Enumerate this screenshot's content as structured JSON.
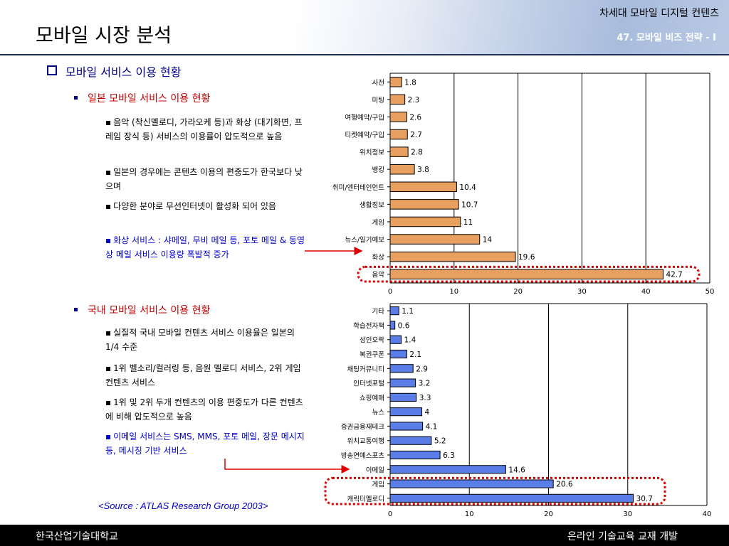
{
  "header": {
    "title": "모바일 시장 분석",
    "course": "차세대 모바일 디지털 컨텐츠",
    "chapter": "47. 모바일 비즈 전략 - I"
  },
  "section": {
    "title": "모바일 서비스 이용 현황",
    "japan": {
      "title": "일본 모바일 서비스 이용 현황",
      "points": [
        "음악 (착신멜로디, 가라오케 등)과 화상 (대기화면, 프레임 장식 등) 서비스의 이용률이 압도적으로 높음",
        "일본의 경우에는 콘텐츠 이용의 편중도가 한국보다 낮으며",
        "다양한 분야로 무선인터넷이 활성화 되어 있음",
        "화상 서비스 : 샤메일, 무비 메일 등, 포토 메일 & 동영상 메일 서비스 이용량 폭발적 증가"
      ]
    },
    "korea": {
      "title": "국내 모바일 서비스 이용 현황",
      "points": [
        "실질적 국내 모바일 컨텐츠 서비스 이용율은 일본의 1/4 수준",
        "1위 벨소리/컬러링 등, 음원 멜로디 서비스, 2위 게임 컨텐츠 서비스",
        "1위 및 2위 두개 컨텐츠의 이용 편중도가 다른 컨텐츠에 비해 압도적으로 높음",
        "이메일 서비스는 SMS, MMS, 포토 메일, 장문 메시지 등, 메시징 기반 서비스"
      ]
    },
    "source": "<Source : ATLAS Research Group 2003>"
  },
  "footer": {
    "left": "한국산업기술대학교",
    "right": "온라인 기술교육 교재 개발"
  },
  "colors": {
    "japan_bar": "#e8a060",
    "korea_bar": "#5b7de8",
    "highlight": "#dd0000",
    "accent": "#00008b"
  },
  "chart_data": [
    {
      "type": "bar",
      "orientation": "horizontal",
      "categories": [
        "사전",
        "미팅",
        "여행예약/구입",
        "티켓예약/구입",
        "위치정보",
        "뱅킹",
        "취미/엔터테인먼트",
        "생활정보",
        "게임",
        "뉴스/일기예보",
        "화상",
        "음악"
      ],
      "values": [
        1.8,
        2.3,
        2.6,
        2.7,
        2.8,
        3.8,
        10.4,
        10.7,
        11,
        14,
        19.6,
        42.7
      ],
      "value_labels": [
        "1.8",
        "2.3",
        "2.6",
        "2.7",
        "2.8",
        "3.8",
        "10.4",
        "10.7",
        "11",
        "14",
        "19.6",
        "42.7"
      ],
      "xlim": [
        0,
        50
      ],
      "ticks": [
        "0",
        "10",
        "20",
        "30",
        "40",
        "50"
      ],
      "grid": true,
      "highlight": [
        "음악"
      ]
    },
    {
      "type": "bar",
      "orientation": "horizontal",
      "categories": [
        "기타",
        "학습전자책",
        "성인오락",
        "복권쿠폰",
        "채팅커뮤니티",
        "인터넷포털",
        "쇼핑예매",
        "뉴스",
        "증권금융재테크",
        "위치교통여행",
        "방송연예스포츠",
        "이메일",
        "게임",
        "캐릭터멜로디"
      ],
      "values": [
        1.1,
        0.6,
        1.4,
        2.1,
        2.9,
        3.2,
        3.3,
        4,
        4.1,
        5.2,
        6.3,
        14.6,
        20.6,
        30.7
      ],
      "value_labels": [
        "1.1",
        "0.6",
        "1.4",
        "2.1",
        "2.9",
        "3.2",
        "3.3",
        "4",
        "4.1",
        "5.2",
        "6.3",
        "14.6",
        "20.6",
        "30.7"
      ],
      "xlim": [
        0,
        40
      ],
      "ticks": [
        "0",
        "10",
        "20",
        "30",
        "40"
      ],
      "grid": true,
      "highlight": [
        "게임",
        "캐릭터멜로디"
      ]
    }
  ]
}
